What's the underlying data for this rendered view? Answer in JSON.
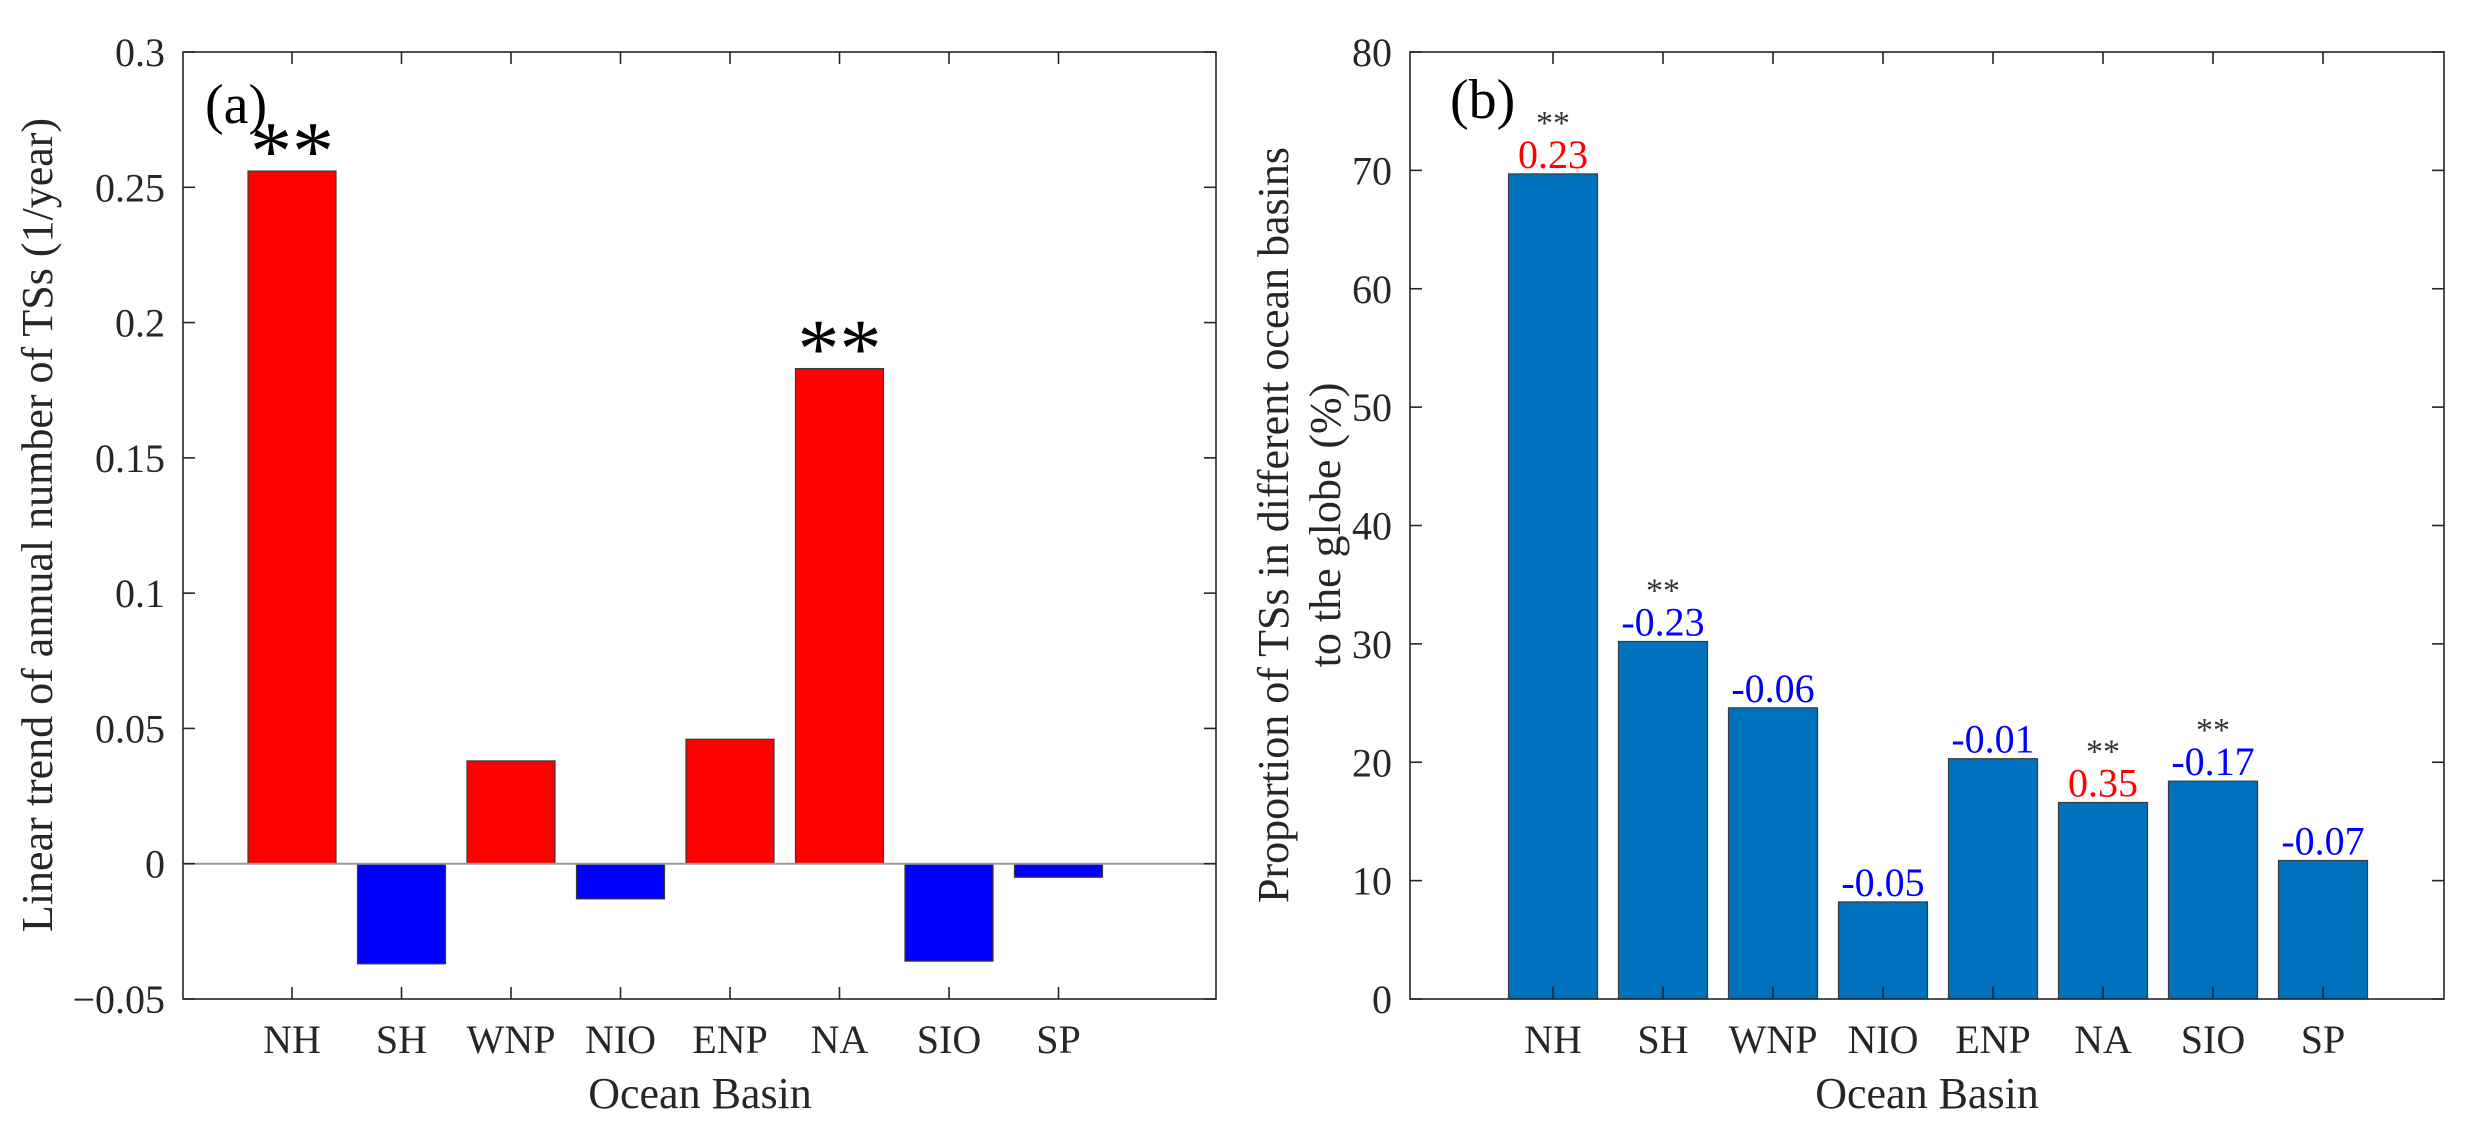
{
  "chart_data": [
    {
      "id": "a",
      "type": "bar",
      "panel_label": "(a)",
      "xlabel": "Ocean Basin",
      "ylabel": "Linear trend of annual number of TSs (1/year)",
      "categories": [
        "NH",
        "SH",
        "WNP",
        "NIO",
        "ENP",
        "NA",
        "SIO",
        "SP"
      ],
      "values": [
        0.256,
        -0.037,
        0.038,
        -0.013,
        0.046,
        0.183,
        -0.036,
        -0.005
      ],
      "significance": [
        "**",
        "",
        "",
        "",
        "",
        "**",
        "",
        ""
      ],
      "ylim": [
        -0.05,
        0.3
      ],
      "yticks": [
        -0.05,
        0,
        0.05,
        0.1,
        0.15,
        0.2,
        0.25,
        0.3
      ],
      "ytick_labels": [
        "−0.05",
        "0",
        "0.05",
        "0.1",
        "0.15",
        "0.2",
        "0.25",
        "0.3"
      ],
      "colors": {
        "positive": "#ff0000",
        "negative": "#0000ff",
        "zero_line": "#999999"
      }
    },
    {
      "id": "b",
      "type": "bar",
      "panel_label": "(b)",
      "xlabel": "Ocean Basin",
      "ylabel_lines": [
        "Proportion of TSs in different ocean basins",
        "to the globe (%)"
      ],
      "categories": [
        "NH",
        "SH",
        "WNP",
        "NIO",
        "ENP",
        "NA",
        "SIO",
        "SP"
      ],
      "values": [
        69.7,
        30.2,
        24.6,
        8.2,
        20.3,
        16.6,
        18.4,
        11.7
      ],
      "data_labels": [
        "0.23",
        "-0.23",
        "-0.06",
        "-0.05",
        "-0.01",
        "0.35",
        "-0.17",
        "-0.07"
      ],
      "significance": [
        "**",
        "**",
        "",
        "",
        "",
        "**",
        "**",
        ""
      ],
      "ylim": [
        0,
        80
      ],
      "yticks": [
        0,
        10,
        20,
        30,
        40,
        50,
        60,
        70,
        80
      ],
      "ytick_labels": [
        "0",
        "10",
        "20",
        "30",
        "40",
        "50",
        "60",
        "70",
        "80"
      ],
      "colors": {
        "bar": "#0072bd",
        "label_positive": "#ff0000",
        "label_negative": "#0000ff",
        "significance": "#333333"
      }
    }
  ]
}
